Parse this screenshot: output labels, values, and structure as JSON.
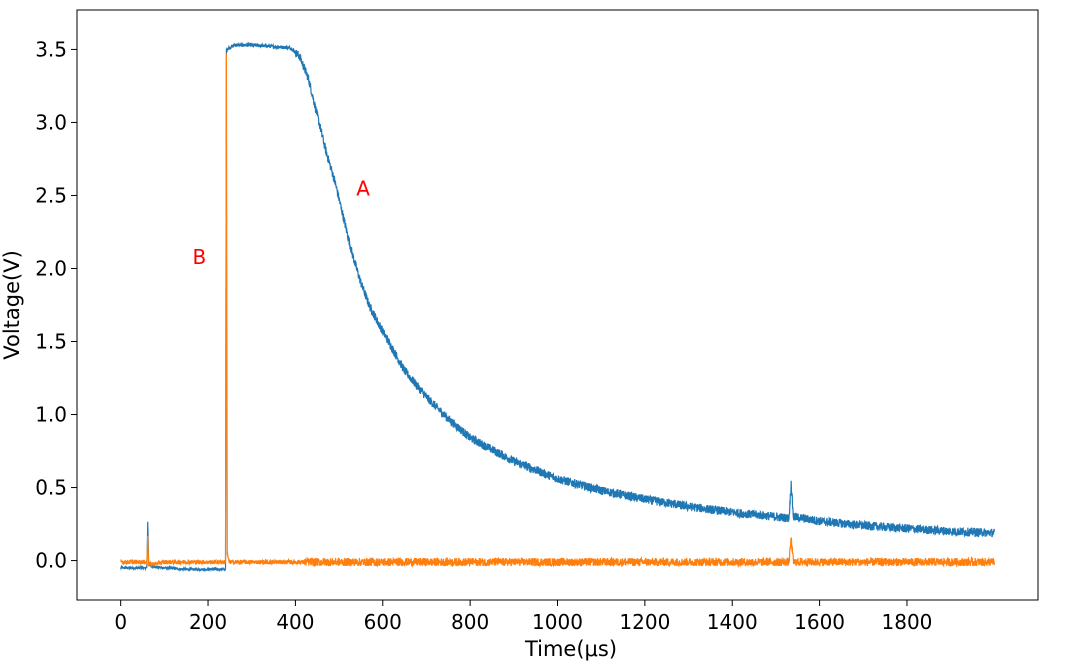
{
  "chart_data": {
    "type": "line",
    "xlabel": "Time(μs)",
    "ylabel": "Voltage(V)",
    "xlim": [
      -100,
      2100
    ],
    "ylim": [
      -0.27,
      3.77
    ],
    "x_ticks": [
      0,
      200,
      400,
      600,
      800,
      1000,
      1200,
      1400,
      1600,
      1800
    ],
    "y_ticks": [
      0.0,
      0.5,
      1.0,
      1.5,
      2.0,
      2.5,
      3.0,
      3.5
    ],
    "grid": false,
    "series": [
      {
        "color": "#1f77b4",
        "points": [
          [
            0,
            -0.05
          ],
          [
            60,
            -0.05
          ],
          [
            62,
            0.27
          ],
          [
            64,
            -0.02
          ],
          [
            70,
            -0.04
          ],
          [
            100,
            -0.05
          ],
          [
            150,
            -0.06
          ],
          [
            200,
            -0.06
          ],
          [
            240,
            -0.06
          ],
          [
            242,
            3.5
          ],
          [
            260,
            3.53
          ],
          [
            300,
            3.53
          ],
          [
            350,
            3.52
          ],
          [
            390,
            3.51
          ],
          [
            410,
            3.45
          ],
          [
            430,
            3.3
          ],
          [
            450,
            3.05
          ],
          [
            470,
            2.8
          ],
          [
            490,
            2.6
          ],
          [
            510,
            2.35
          ],
          [
            530,
            2.1
          ],
          [
            550,
            1.9
          ],
          [
            570,
            1.74
          ],
          [
            600,
            1.57
          ],
          [
            650,
            1.3
          ],
          [
            700,
            1.12
          ],
          [
            750,
            0.97
          ],
          [
            800,
            0.84
          ],
          [
            850,
            0.76
          ],
          [
            900,
            0.68
          ],
          [
            950,
            0.62
          ],
          [
            1000,
            0.56
          ],
          [
            1100,
            0.48
          ],
          [
            1200,
            0.42
          ],
          [
            1300,
            0.37
          ],
          [
            1400,
            0.33
          ],
          [
            1500,
            0.3
          ],
          [
            1530,
            0.29
          ],
          [
            1535,
            0.53
          ],
          [
            1540,
            0.3
          ],
          [
            1600,
            0.27
          ],
          [
            1700,
            0.24
          ],
          [
            1800,
            0.22
          ],
          [
            1900,
            0.2
          ],
          [
            2000,
            0.19
          ]
        ]
      },
      {
        "color": "#ff7f0e",
        "points": [
          [
            0,
            -0.01
          ],
          [
            60,
            -0.01
          ],
          [
            62,
            0.17
          ],
          [
            64,
            -0.03
          ],
          [
            100,
            -0.01
          ],
          [
            200,
            -0.01
          ],
          [
            240,
            -0.01
          ],
          [
            242,
            3.48
          ],
          [
            244,
            0.05
          ],
          [
            248,
            -0.01
          ],
          [
            400,
            -0.01
          ],
          [
            600,
            -0.01
          ],
          [
            800,
            -0.01
          ],
          [
            1000,
            -0.01
          ],
          [
            1200,
            -0.01
          ],
          [
            1400,
            -0.01
          ],
          [
            1530,
            -0.01
          ],
          [
            1535,
            0.15
          ],
          [
            1540,
            -0.01
          ],
          [
            1700,
            -0.01
          ],
          [
            2000,
            -0.01
          ]
        ]
      }
    ],
    "annotations": [
      {
        "text": "A",
        "x": 555,
        "y": 2.5,
        "color": "#ff0000"
      },
      {
        "text": "B",
        "x": 180,
        "y": 2.03,
        "color": "#ff0000"
      }
    ]
  }
}
